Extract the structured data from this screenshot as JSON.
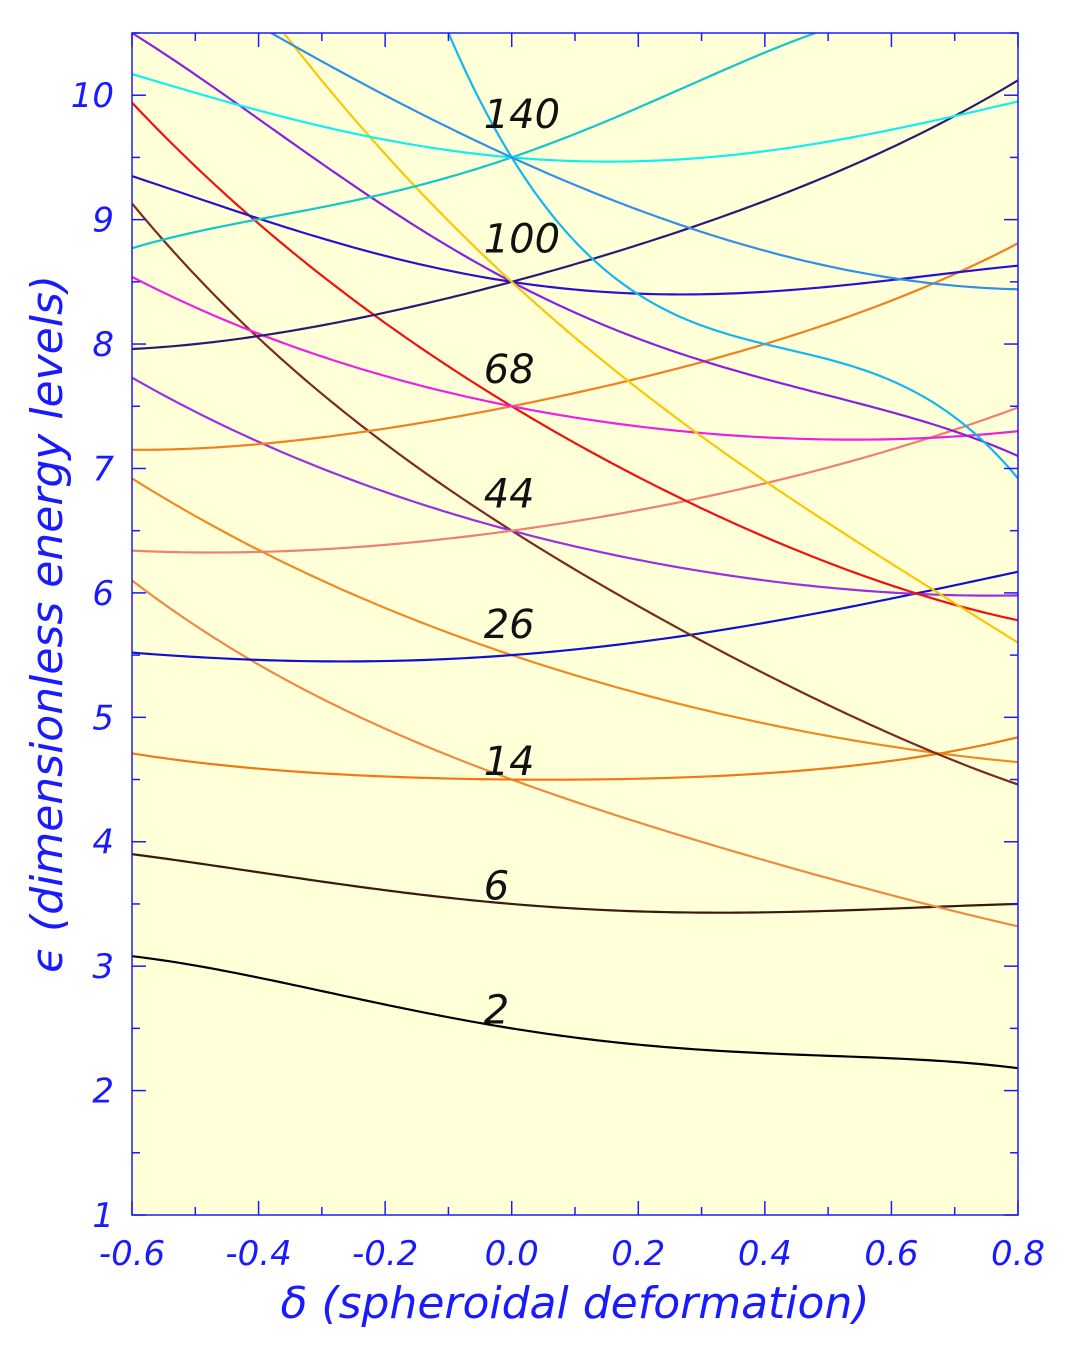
{
  "chart_data": {
    "type": "line",
    "title": "",
    "xlabel": "δ (spheroidal deformation)",
    "ylabel": "ϵ (dimensionless energy levels)",
    "xlim": [
      -0.6,
      0.8
    ],
    "ylim": [
      1,
      10.5
    ],
    "xticks": [
      "-0.6",
      "-0.4",
      "-0.2",
      "0.0",
      "0.2",
      "0.4",
      "0.6",
      "0.8"
    ],
    "yticks": [
      "1",
      "2",
      "3",
      "4",
      "5",
      "6",
      "7",
      "8",
      "9",
      "10"
    ],
    "grid": false,
    "plot_background": "#ffffd8",
    "axis_color": "#1a1aff",
    "label_color": "#111111",
    "magic_number_labels": [
      {
        "text": "2",
        "x": 0.0,
        "y": 2.65
      },
      {
        "text": "6",
        "x": 0.0,
        "y": 3.65
      },
      {
        "text": "14",
        "x": 0.0,
        "y": 4.65
      },
      {
        "text": "26",
        "x": 0.0,
        "y": 5.75
      },
      {
        "text": "44",
        "x": 0.0,
        "y": 6.8
      },
      {
        "text": "68",
        "x": 0.0,
        "y": 7.8
      },
      {
        "text": "100",
        "x": 0.0,
        "y": 8.85
      },
      {
        "text": "140",
        "x": 0.0,
        "y": 9.85
      }
    ],
    "series": [
      {
        "color": "#000000",
        "x": [
          -0.6,
          -0.3,
          0.0,
          0.4,
          0.8
        ],
        "y": [
          3.08,
          2.8,
          2.5,
          2.3,
          2.18
        ]
      },
      {
        "color": "#3a1a10",
        "x": [
          -0.6,
          -0.3,
          0.0,
          0.35,
          0.8
        ],
        "y": [
          3.9,
          3.68,
          3.5,
          3.43,
          3.5
        ]
      },
      {
        "color": "#f08a40",
        "x": [
          -0.6,
          -0.3,
          0.0,
          0.4,
          0.8
        ],
        "y": [
          6.1,
          5.15,
          4.5,
          3.85,
          3.32
        ]
      },
      {
        "color": "#f07a10",
        "x": [
          -0.6,
          -0.3,
          0.0,
          0.4,
          0.8
        ],
        "y": [
          4.71,
          4.55,
          4.5,
          4.55,
          4.84
        ]
      },
      {
        "color": "#f08a20",
        "x": [
          -0.6,
          -0.3,
          0.0,
          0.4,
          0.8
        ],
        "y": [
          6.92,
          6.1,
          5.5,
          4.95,
          4.64
        ]
      },
      {
        "color": "#1010d0",
        "x": [
          -0.6,
          -0.3,
          0.0,
          0.4,
          0.8
        ],
        "y": [
          5.52,
          5.45,
          5.5,
          5.76,
          6.17
        ]
      },
      {
        "color": "#7a2a20",
        "x": [
          -0.6,
          -0.3,
          0.0,
          0.4,
          0.8
        ],
        "y": [
          9.13,
          7.6,
          6.5,
          5.35,
          4.46
        ]
      },
      {
        "color": "#9a30e0",
        "x": [
          -0.6,
          -0.3,
          0.0,
          0.4,
          0.8
        ],
        "y": [
          7.73,
          7.0,
          6.5,
          6.1,
          5.98
        ]
      },
      {
        "color": "#f08070",
        "x": [
          -0.6,
          -0.3,
          0.0,
          0.4,
          0.8
        ],
        "y": [
          6.34,
          6.35,
          6.5,
          6.88,
          7.49
        ]
      },
      {
        "color": "#f01010",
        "x": [
          -0.6,
          -0.3,
          0.0,
          0.4,
          0.8
        ],
        "y": [
          9.94,
          8.55,
          7.5,
          6.45,
          5.78
        ]
      },
      {
        "color": "#f08020",
        "x": [
          -0.6,
          -0.3,
          0.0,
          0.4,
          0.8
        ],
        "y": [
          7.15,
          7.25,
          7.5,
          8.0,
          8.81
        ]
      },
      {
        "color": "#f020e0",
        "x": [
          -0.6,
          -0.3,
          0.0,
          0.4,
          0.8
        ],
        "y": [
          8.54,
          7.9,
          7.5,
          7.25,
          7.3
        ]
      },
      {
        "color": "#8a20e0",
        "x": [
          -0.6,
          -0.3,
          0.0,
          0.4,
          0.8
        ],
        "y": [
          10.5,
          9.45,
          8.5,
          7.72,
          7.1
        ]
      },
      {
        "color": "#2a1a70",
        "x": [
          -0.6,
          -0.3,
          0.0,
          0.4,
          0.8
        ],
        "y": [
          7.96,
          8.15,
          8.5,
          9.15,
          10.12
        ]
      },
      {
        "color": "#2a10d0",
        "x": [
          -0.6,
          -0.3,
          0.0,
          0.4,
          0.8
        ],
        "y": [
          9.35,
          8.85,
          8.5,
          8.42,
          8.63
        ]
      },
      {
        "color": "#f8c800",
        "x": [
          -0.36,
          0.0,
          0.4,
          0.8
        ],
        "y": [
          10.5,
          8.5,
          6.9,
          5.6
        ]
      },
      {
        "color": "#10c8c8",
        "x": [
          -0.6,
          -0.3,
          0.0,
          0.2,
          0.48
        ],
        "y": [
          8.77,
          9.1,
          9.5,
          9.9,
          10.5
        ]
      },
      {
        "color": "#10f0f0",
        "x": [
          -0.6,
          -0.3,
          0.0,
          0.4,
          0.8
        ],
        "y": [
          10.17,
          9.75,
          9.5,
          9.55,
          9.95
        ]
      },
      {
        "color": "#10b8f0",
        "x": [
          -0.1,
          0.0,
          0.4,
          0.8
        ],
        "y": [
          10.5,
          9.5,
          8.0,
          6.92
        ]
      },
      {
        "color": "#3090e8",
        "x": [
          -0.38,
          0.0,
          0.4,
          0.8
        ],
        "y": [
          10.5,
          9.5,
          8.75,
          8.44
        ]
      }
    ]
  }
}
